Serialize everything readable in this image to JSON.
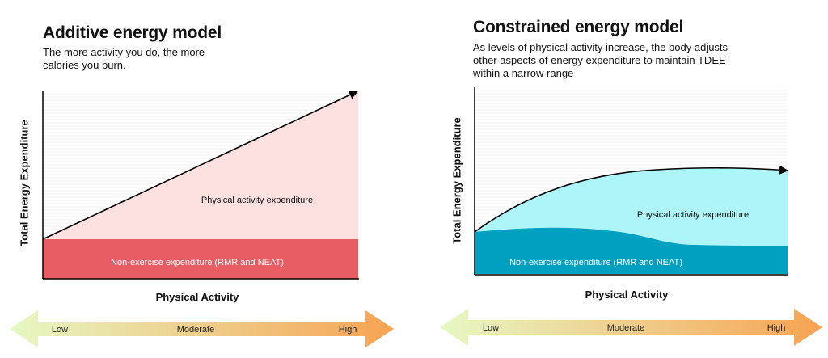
{
  "left": {
    "title": "Additive energy model",
    "subtitle": "The more activity you do, the more calories you burn.",
    "ylabel": "Total Energy Expenditure",
    "xlabel": "Physical Activity",
    "upper_region": "Physical activity expenditure",
    "lower_region": "Non-exercise expenditure (RMR and NEAT)",
    "scale": {
      "low": "Low",
      "mid": "Moderate",
      "high": "High"
    }
  },
  "right": {
    "title": "Constrained energy model",
    "subtitle": "As levels of physical activity increase, the body adjusts other aspects of energy expenditure to maintain TDEE within a narrow range",
    "ylabel": "Total Energy Expenditure",
    "xlabel": "Physical Activity",
    "upper_region": "Physical activity expenditure",
    "lower_region": "Non-exercise expenditure (RMR and NEAT)",
    "scale": {
      "low": "Low",
      "mid": "Moderate",
      "high": "High"
    }
  },
  "colors": {
    "left_upper": "#fde0e0",
    "left_lower": "#e85c63",
    "right_upper": "#aef5fa",
    "right_lower": "#00a0c0",
    "arrow_start": "#e6f8c4",
    "arrow_end": "#f7a352"
  }
}
